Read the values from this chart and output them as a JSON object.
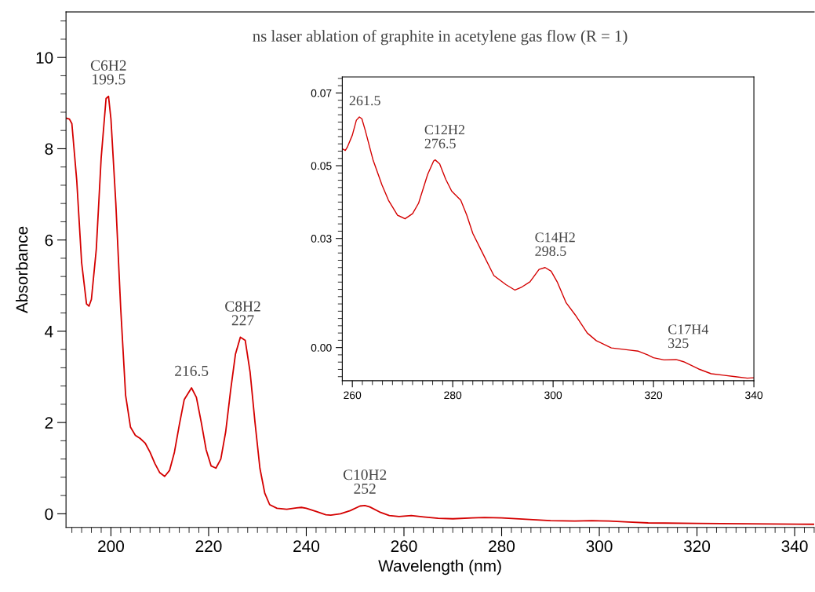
{
  "chart_data": [
    {
      "type": "line",
      "title": "ns laser ablation of graphite in acetylene gas flow (R = 1)",
      "xlabel": "Wavelength (nm)",
      "ylabel": "Absorbance",
      "xlim": [
        190.8,
        344
      ],
      "ylim": [
        -0.3,
        11.0
      ],
      "xticks": [
        200,
        220,
        240,
        260,
        280,
        300,
        320,
        340
      ],
      "yticks": [
        0,
        2,
        4,
        6,
        8,
        10
      ],
      "grid": false,
      "marker": "none",
      "line_style": "solid",
      "annotations": [
        {
          "text": "C6H2\n199.5",
          "x": 199.5,
          "y": 9.15
        },
        {
          "text": "216.5",
          "x": 216.5,
          "y": 2.76
        },
        {
          "text": "C8H2\n227",
          "x": 227,
          "y": 3.87
        },
        {
          "text": "C10H2\n252",
          "x": 252,
          "y": 0.18
        }
      ],
      "series": [
        {
          "color": "#d40000",
          "x": [
            190.8,
            191.5,
            192,
            193,
            194,
            195,
            195.5,
            196,
            197,
            198,
            199,
            199.5,
            200,
            201,
            202,
            203,
            204,
            205,
            206,
            207,
            208,
            209,
            210,
            211,
            212,
            213,
            214,
            215,
            216.5,
            217.5,
            218.5,
            219.5,
            220.5,
            221.5,
            222.5,
            223.5,
            224.5,
            225.5,
            226.5,
            227.5,
            228.5,
            229.5,
            230.5,
            231.5,
            232.5,
            234,
            236,
            238,
            239,
            240,
            242,
            244,
            245,
            247,
            249,
            251,
            252,
            253,
            255,
            257,
            259,
            261.5,
            264,
            267,
            270,
            274,
            276.5,
            280,
            285,
            290,
            295,
            298.5,
            302,
            306,
            310,
            320,
            330,
            344
          ],
          "values": [
            8.67,
            8.65,
            8.55,
            7.3,
            5.5,
            4.6,
            4.55,
            4.7,
            5.8,
            7.8,
            9.1,
            9.15,
            8.65,
            6.8,
            4.5,
            2.6,
            1.9,
            1.72,
            1.65,
            1.55,
            1.35,
            1.1,
            0.9,
            0.82,
            0.95,
            1.35,
            1.95,
            2.5,
            2.76,
            2.55,
            2.0,
            1.4,
            1.05,
            1.0,
            1.2,
            1.8,
            2.7,
            3.5,
            3.87,
            3.8,
            3.1,
            2.0,
            1.0,
            0.45,
            0.2,
            0.12,
            0.1,
            0.13,
            0.14,
            0.12,
            0.05,
            -0.02,
            -0.03,
            0.0,
            0.07,
            0.17,
            0.18,
            0.15,
            0.04,
            -0.04,
            -0.06,
            -0.04,
            -0.07,
            -0.1,
            -0.11,
            -0.09,
            -0.08,
            -0.09,
            -0.12,
            -0.15,
            -0.16,
            -0.15,
            -0.16,
            -0.18,
            -0.2,
            -0.21,
            -0.22,
            -0.23
          ]
        }
      ]
    },
    {
      "type": "line",
      "xlim": [
        258,
        340
      ],
      "ylim": [
        -0.0091,
        0.0744
      ],
      "xticks": [
        260,
        280,
        300,
        320,
        340
      ],
      "yticks": [
        {
          "value": 0.0,
          "label": "0.00"
        },
        {
          "value": 0.03,
          "label": "0.03"
        },
        {
          "value": 0.05,
          "label": "0.05"
        },
        {
          "value": 0.07,
          "label": "0.07"
        }
      ],
      "grid": false,
      "marker": "none",
      "line_style": "solid",
      "annotations": [
        {
          "text": "261.5",
          "x": 261.5,
          "y": 0.0634
        },
        {
          "text": "C12H2\n276.5",
          "x": 276.5,
          "y": 0.0516
        },
        {
          "text": "C14H2\n298.5",
          "x": 298.5,
          "y": 0.022
        },
        {
          "text": "C17H4\n325",
          "x": 325,
          "y": -0.0033
        }
      ],
      "series": [
        {
          "color": "#d40000",
          "x": [
            258.1,
            258.6,
            259.0,
            260,
            260.8,
            261.4,
            261.9,
            262.6,
            264.1,
            265.9,
            267.2,
            269,
            270.5,
            272,
            273.2,
            275,
            276.2,
            276.5,
            277.4,
            278.6,
            279.8,
            281.6,
            282.8,
            284,
            285.8,
            288.2,
            290.6,
            292.4,
            293.6,
            295.4,
            297.2,
            298.4,
            299.6,
            300.8,
            302.6,
            304.4,
            306.8,
            308.6,
            311.6,
            315.2,
            317,
            318.8,
            320,
            322.1,
            324.5,
            326,
            329,
            331.5,
            333.9,
            336.3,
            338.7,
            339.9
          ],
          "values": [
            0.0546,
            0.0542,
            0.0551,
            0.0584,
            0.0625,
            0.0634,
            0.0629,
            0.0596,
            0.0517,
            0.0447,
            0.0405,
            0.0364,
            0.0354,
            0.0368,
            0.0397,
            0.0476,
            0.0513,
            0.0516,
            0.0505,
            0.0463,
            0.043,
            0.0405,
            0.0364,
            0.0314,
            0.0264,
            0.0198,
            0.0173,
            0.0158,
            0.0165,
            0.0181,
            0.0215,
            0.022,
            0.021,
            0.0181,
            0.0123,
            0.009,
            0.004,
            0.0019,
            -0.0001,
            -0.0007,
            -0.001,
            -0.002,
            -0.0028,
            -0.0034,
            -0.0033,
            -0.0039,
            -0.0059,
            -0.0072,
            -0.0076,
            -0.008,
            -0.0084,
            -0.0083
          ]
        }
      ]
    }
  ]
}
